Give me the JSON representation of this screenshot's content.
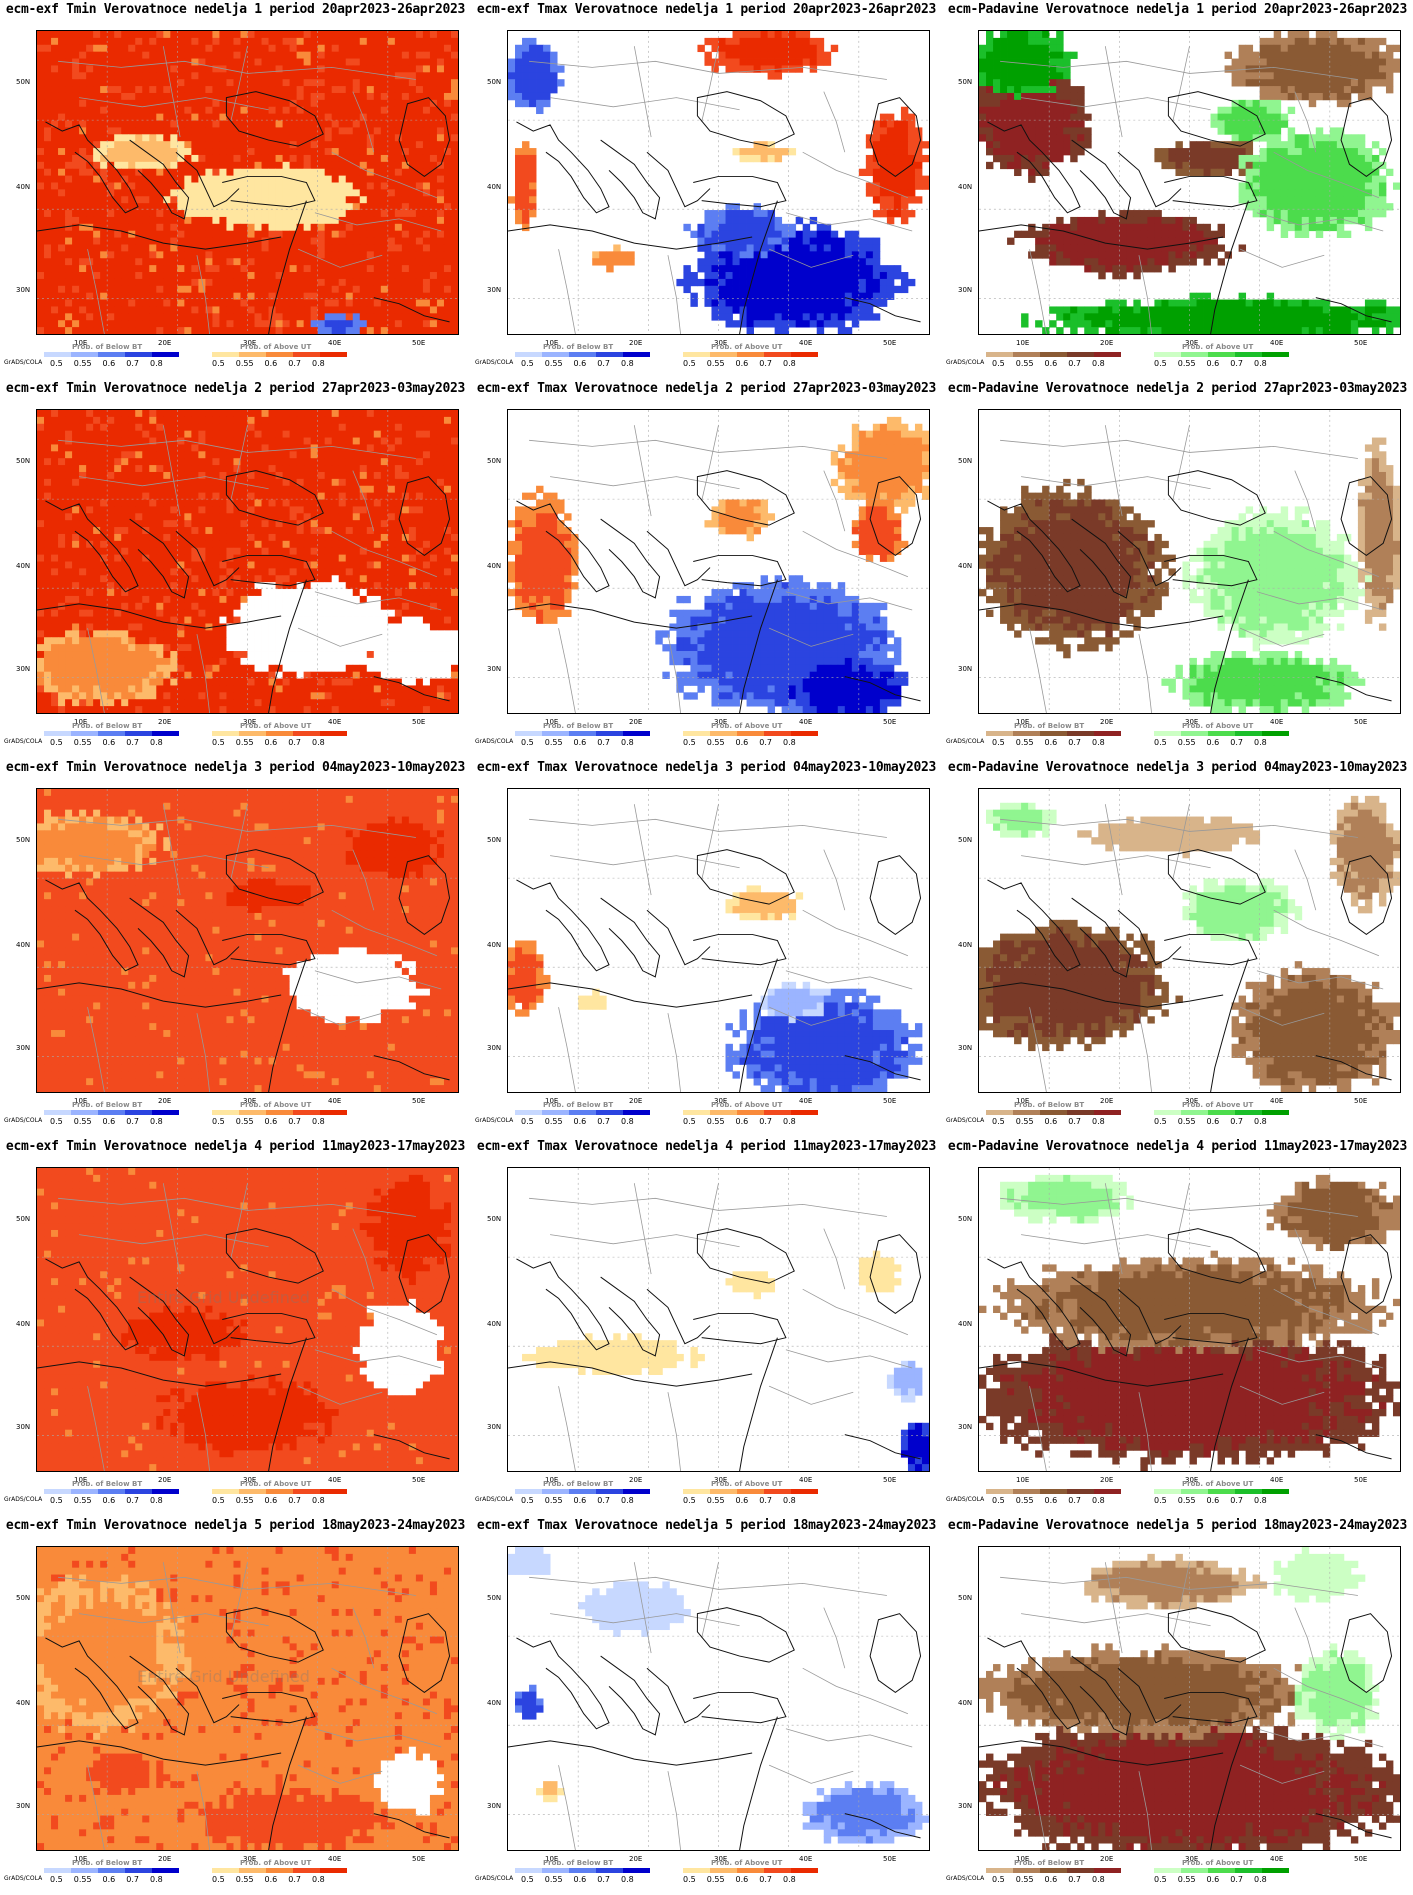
{
  "page": {
    "title": ""
  },
  "palettes": {
    "red": [
      "#ffe6a0",
      "#fdba6a",
      "#f98a3a",
      "#f24a1e",
      "#ea2a00"
    ],
    "blue": [
      "#c7d8ff",
      "#9bb4ff",
      "#5c7ef2",
      "#2b44e0",
      "#0000cc"
    ],
    "green": [
      "#ccffc4",
      "#90f590",
      "#4cdc4c",
      "#1bbf2a",
      "#00a000"
    ],
    "brown": [
      "#d8b48a",
      "#b08058",
      "#8a5a34",
      "#7a3a28",
      "#8f2222"
    ]
  },
  "colorbar_ticks": [
    "0.5",
    "0.55",
    "0.6",
    "0.7",
    "0.8"
  ],
  "lat_labels": [
    "50N",
    "40N",
    "30N"
  ],
  "lon_labels": [
    "10E",
    "20E",
    "30E",
    "40E",
    "50E"
  ],
  "grads_label": "GrADS/COLA",
  "cbar_titles": {
    "below": "Prob. of Below BT",
    "above": "Prob. of Above UT"
  },
  "undefined_text": "Entire Grid Undefined",
  "panels": [
    {
      "title": "ecm-exf Tmin Verovatnoce nedelja 1 period 20apr2023-26apr2023",
      "left_palette": "blue",
      "right_palette": "red",
      "base": "#ea2a00",
      "undefined": false,
      "left_title": true
    },
    {
      "title": "ecm-exf Tmax Verovatnoce nedelja 1 period 20apr2023-26apr2023",
      "left_palette": "blue",
      "right_palette": "red",
      "base": "#ffffff",
      "undefined": false,
      "left_title": true
    },
    {
      "title": "ecm-Padavine Verovatnoce nedelja 1 period 20apr2023-26apr2023",
      "left_palette": "brown",
      "right_palette": "green",
      "base": "#ffffff",
      "undefined": false,
      "left_title": false
    },
    {
      "title": "ecm-exf Tmin Verovatnoce nedelja 2 period 27apr2023-03may2023",
      "left_palette": "blue",
      "right_palette": "red",
      "base": "#ea2a00",
      "undefined": false,
      "left_title": true
    },
    {
      "title": "ecm-exf Tmax Verovatnoce nedelja 2 period 27apr2023-03may2023",
      "left_palette": "blue",
      "right_palette": "red",
      "base": "#ffffff",
      "undefined": false,
      "left_title": true
    },
    {
      "title": "ecm-Padavine Verovatnoce nedelja 2 period 27apr2023-03may2023",
      "left_palette": "brown",
      "right_palette": "green",
      "base": "#ffffff",
      "undefined": false,
      "left_title": true
    },
    {
      "title": "ecm-exf Tmin Verovatnoce nedelja 3 period 04may2023-10may2023",
      "left_palette": "blue",
      "right_palette": "red",
      "base": "#f24a1e",
      "undefined": false,
      "left_title": true
    },
    {
      "title": "ecm-exf Tmax Verovatnoce nedelja 3 period 04may2023-10may2023",
      "left_palette": "blue",
      "right_palette": "red",
      "base": "#ffffff",
      "undefined": false,
      "left_title": true
    },
    {
      "title": "ecm-Padavine Verovatnoce nedelja 3 period 04may2023-10may2023",
      "left_palette": "brown",
      "right_palette": "green",
      "base": "#ffffff",
      "undefined": false,
      "left_title": true
    },
    {
      "title": "ecm-exf Tmin Verovatnoce nedelja 4 period 11may2023-17may2023",
      "left_palette": "blue",
      "right_palette": "red",
      "base": "#f24a1e",
      "undefined": true,
      "left_title": true
    },
    {
      "title": "ecm-exf Tmax Verovatnoce nedelja 4 period 11may2023-17may2023",
      "left_palette": "blue",
      "right_palette": "red",
      "base": "#ffffff",
      "undefined": false,
      "left_title": true
    },
    {
      "title": "ecm-Padavine Verovatnoce nedelja 4 period 11may2023-17may2023",
      "left_palette": "brown",
      "right_palette": "green",
      "base": "#ffffff",
      "undefined": false,
      "left_title": false
    },
    {
      "title": "ecm-exf Tmin Verovatnoce nedelja 5 period 18may2023-24may2023",
      "left_palette": "blue",
      "right_palette": "red",
      "base": "#f98a3a",
      "undefined": true,
      "left_title": true
    },
    {
      "title": "ecm-exf Tmax Verovatnoce nedelja 5 period 18may2023-24may2023",
      "left_palette": "blue",
      "right_palette": "red",
      "base": "#ffffff",
      "undefined": false,
      "left_title": true
    },
    {
      "title": "ecm-Padavine Verovatnoce nedelja 5 period 18may2023-24may2023",
      "left_palette": "brown",
      "right_palette": "green",
      "base": "#ffffff",
      "undefined": false,
      "left_title": true
    }
  ]
}
